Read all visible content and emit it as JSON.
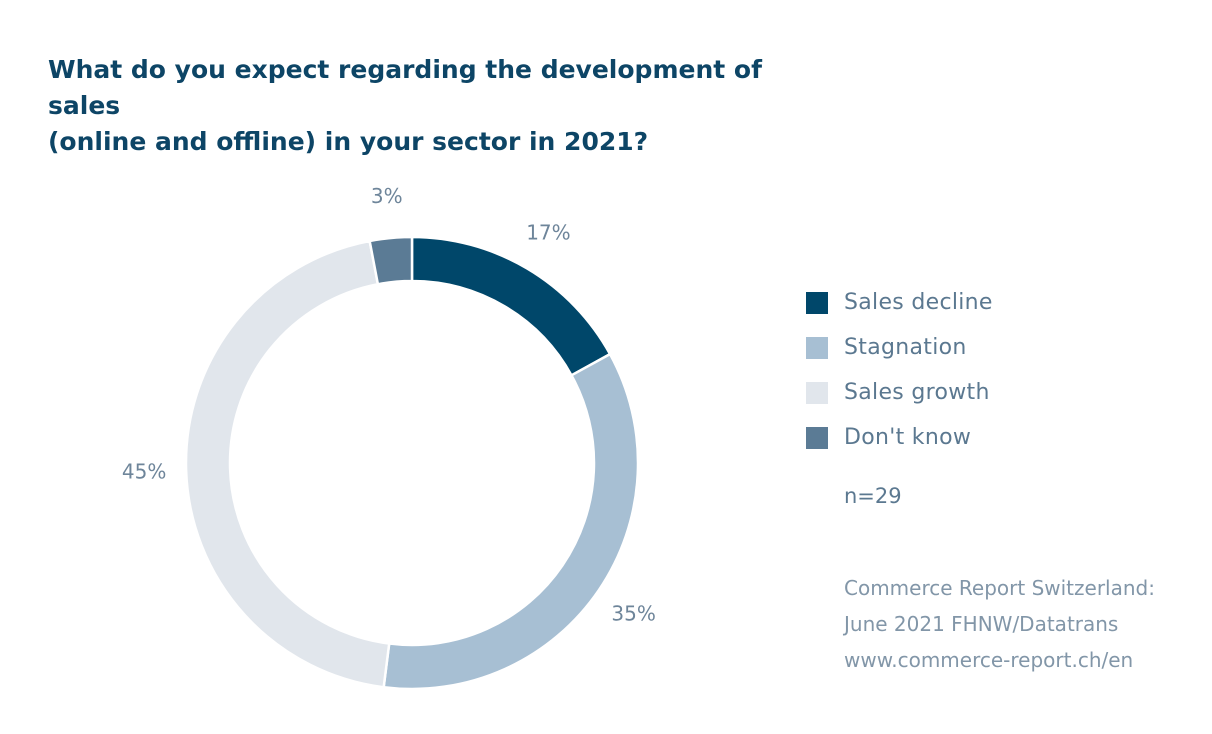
{
  "title_lines": [
    "What do you expect regarding the development of sales",
    "(online and offline) in your sector in 2021?"
  ],
  "sample_text": "n=29",
  "source_lines": [
    "Commerce Report Switzerland:",
    "June 2021 FHNW/Datatrans",
    "www.commerce-report.ch/en"
  ],
  "chart_data": {
    "type": "pie",
    "style": "donut",
    "title": "What do you expect regarding the development of sales (online and offline) in your sector in 2021?",
    "legend_position": "right",
    "slices": [
      {
        "label": "Sales decline",
        "value": 17,
        "display": "17%",
        "color": "#00476a"
      },
      {
        "label": "Stagnation",
        "value": 35,
        "display": "35%",
        "color": "#a7bfd3"
      },
      {
        "label": "Sales growth",
        "value": 45,
        "display": "45%",
        "color": "#e1e6ec"
      },
      {
        "label": "Don't know",
        "value": 3,
        "display": "3%",
        "color": "#5b7b95"
      }
    ]
  }
}
